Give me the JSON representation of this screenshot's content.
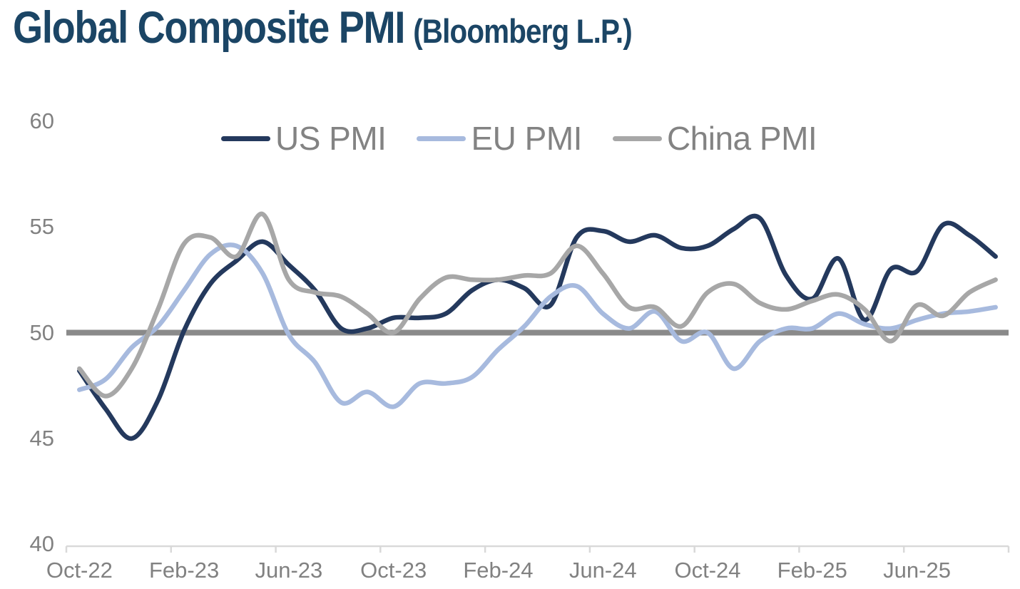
{
  "title": {
    "main": "Global Composite PMI",
    "suffix": "(Bloomberg L.P.)"
  },
  "colors": {
    "title": "#1b4565",
    "axis_text": "#818181",
    "legend_text": "#838383",
    "reference_line": "#8a8a8a",
    "axis_line": "#d9d9d9",
    "background": "#ffffff"
  },
  "chart_data": {
    "type": "line",
    "title": "Global Composite PMI (Bloomberg L.P.)",
    "smoothed": true,
    "grid": false,
    "legend_position": "top",
    "ylim": [
      40,
      60
    ],
    "yticks": [
      60,
      55,
      50,
      45,
      40
    ],
    "reference_line": 50,
    "x_tick_interval": 4,
    "x_tick_labels": [
      "Oct-22",
      "Feb-23",
      "Jun-23",
      "Oct-23",
      "Feb-24",
      "Jun-24",
      "Oct-24",
      "Feb-25",
      "Jun-25"
    ],
    "x": [
      "Oct-22",
      "Nov-22",
      "Dec-22",
      "Jan-23",
      "Feb-23",
      "Mar-23",
      "Apr-23",
      "May-23",
      "Jun-23",
      "Jul-23",
      "Aug-23",
      "Sep-23",
      "Oct-23",
      "Nov-23",
      "Dec-23",
      "Jan-24",
      "Feb-24",
      "Mar-24",
      "Apr-24",
      "May-24",
      "Jun-24",
      "Jul-24",
      "Aug-24",
      "Sep-24",
      "Oct-24",
      "Nov-24",
      "Dec-24",
      "Jan-25",
      "Feb-25",
      "Mar-25",
      "Apr-25",
      "May-25",
      "Jun-25",
      "Jul-25",
      "Aug-25",
      "Sep-25"
    ],
    "series": [
      {
        "name": "US PMI",
        "color": "#24395d",
        "values": [
          48.2,
          46.4,
          45.0,
          46.8,
          50.1,
          52.3,
          53.4,
          54.3,
          53.2,
          52.0,
          50.2,
          50.2,
          50.7,
          50.7,
          50.9,
          52.0,
          52.5,
          52.1,
          51.3,
          54.5,
          54.8,
          54.3,
          54.6,
          54.0,
          54.1,
          54.9,
          55.4,
          52.7,
          51.6,
          53.5,
          50.6,
          53.0,
          52.9,
          55.1,
          54.6,
          53.6
        ]
      },
      {
        "name": "EU PMI",
        "color": "#a7bade",
        "values": [
          47.3,
          47.8,
          49.3,
          50.3,
          52.0,
          53.7,
          54.1,
          52.8,
          49.9,
          48.6,
          46.7,
          47.2,
          46.5,
          47.6,
          47.6,
          47.9,
          49.2,
          50.3,
          51.7,
          52.2,
          50.9,
          50.2,
          51.0,
          49.6,
          50.0,
          48.3,
          49.6,
          50.2,
          50.2,
          50.9,
          50.4,
          50.2,
          50.6,
          50.9,
          51.0,
          51.2
        ]
      },
      {
        "name": "China PMI",
        "color": "#a7a7a7",
        "values": [
          48.3,
          47.0,
          48.3,
          51.1,
          54.2,
          54.5,
          53.6,
          55.6,
          52.5,
          51.9,
          51.7,
          50.9,
          50.0,
          51.6,
          52.6,
          52.5,
          52.5,
          52.7,
          52.8,
          54.1,
          52.8,
          51.2,
          51.2,
          50.3,
          51.9,
          52.3,
          51.4,
          51.1,
          51.5,
          51.8,
          51.1,
          49.6,
          51.3,
          50.8,
          51.9,
          52.5
        ]
      }
    ]
  }
}
